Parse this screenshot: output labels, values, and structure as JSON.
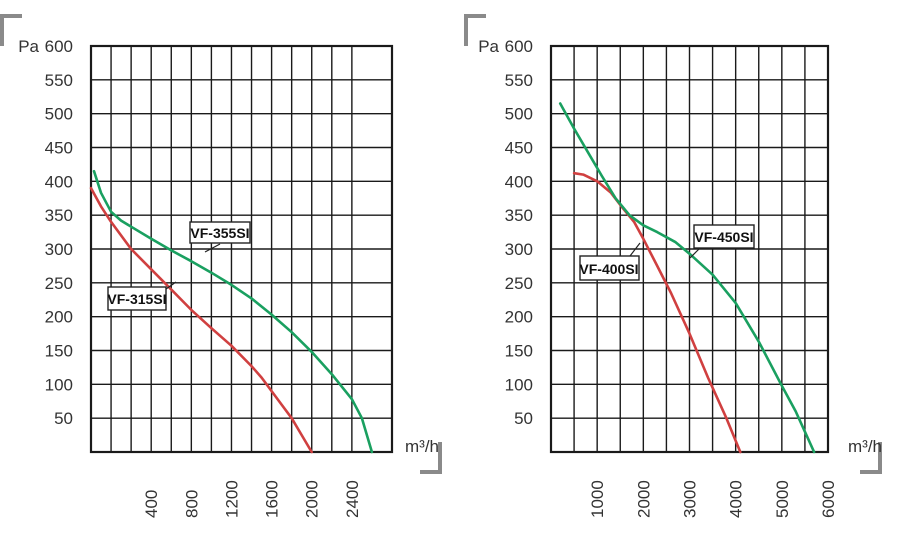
{
  "colors": {
    "red": "#d04040",
    "green": "#1aa060",
    "grid": "#1a1a1a",
    "corner": "#8a8a8a"
  },
  "chart_data": [
    {
      "type": "line",
      "ylabel": "Pa",
      "xlabel": "m³/h",
      "xlim": [
        -200,
        2800
      ],
      "ylim": [
        0,
        600
      ],
      "y_ticks": [
        50,
        100,
        150,
        200,
        250,
        300,
        350,
        400,
        450,
        500,
        550,
        600
      ],
      "x_ticks": [
        400,
        800,
        1200,
        1600,
        2000,
        2400
      ],
      "x_gridlines": [
        0,
        200,
        400,
        600,
        800,
        1000,
        1200,
        1400,
        1600,
        1800,
        2000,
        2200,
        2400
      ],
      "grid": true,
      "series": [
        {
          "name": "VF-315SI",
          "color": "red",
          "x": [
            -200,
            -100,
            0,
            200,
            400,
            600,
            800,
            1000,
            1200,
            1400,
            1500,
            1600,
            1700,
            1800,
            1900,
            2000
          ],
          "y": [
            390,
            363,
            340,
            300,
            270,
            240,
            210,
            183,
            157,
            127,
            110,
            90,
            70,
            50,
            25,
            0
          ]
        },
        {
          "name": "VF-355SI",
          "color": "green",
          "x": [
            -170,
            -100,
            0,
            100,
            200,
            400,
            600,
            800,
            1000,
            1200,
            1400,
            1600,
            1800,
            2000,
            2200,
            2400,
            2500,
            2600
          ],
          "y": [
            415,
            383,
            355,
            342,
            333,
            315,
            298,
            282,
            265,
            247,
            227,
            203,
            177,
            148,
            115,
            78,
            50,
            0
          ]
        }
      ],
      "labels": [
        {
          "text": "VF-355SI",
          "series": "VF-355SI"
        },
        {
          "text": "VF-315SI",
          "series": "VF-315SI"
        }
      ]
    },
    {
      "type": "line",
      "ylabel": "Pa",
      "xlabel": "m³/h",
      "xlim": [
        0,
        6000
      ],
      "ylim": [
        0,
        600
      ],
      "y_ticks": [
        50,
        100,
        150,
        200,
        250,
        300,
        350,
        400,
        450,
        500,
        550,
        600
      ],
      "x_ticks": [
        1000,
        2000,
        3000,
        4000,
        5000,
        6000
      ],
      "x_gridlines": [
        500,
        1000,
        1500,
        2000,
        2500,
        3000,
        3500,
        4000,
        4500,
        5000,
        5500
      ],
      "grid": true,
      "series": [
        {
          "name": "VF-400SI",
          "color": "red",
          "x": [
            500,
            700,
            1000,
            1300,
            1500,
            1800,
            2000,
            2300,
            2600,
            3000,
            3400,
            3800,
            4100
          ],
          "y": [
            412,
            410,
            400,
            383,
            365,
            340,
            315,
            275,
            235,
            175,
            110,
            50,
            0
          ]
        },
        {
          "name": "VF-450SI",
          "color": "green",
          "x": [
            200,
            500,
            800,
            1100,
            1400,
            1700,
            2000,
            2300,
            2700,
            3000,
            3500,
            4000,
            4500,
            5000,
            5300,
            5500,
            5700
          ],
          "y": [
            515,
            478,
            443,
            408,
            375,
            350,
            335,
            325,
            310,
            293,
            262,
            220,
            163,
            98,
            60,
            30,
            0
          ]
        }
      ],
      "labels": [
        {
          "text": "VF-450SI",
          "series": "VF-450SI"
        },
        {
          "text": "VF-400SI",
          "series": "VF-400SI"
        }
      ]
    }
  ]
}
